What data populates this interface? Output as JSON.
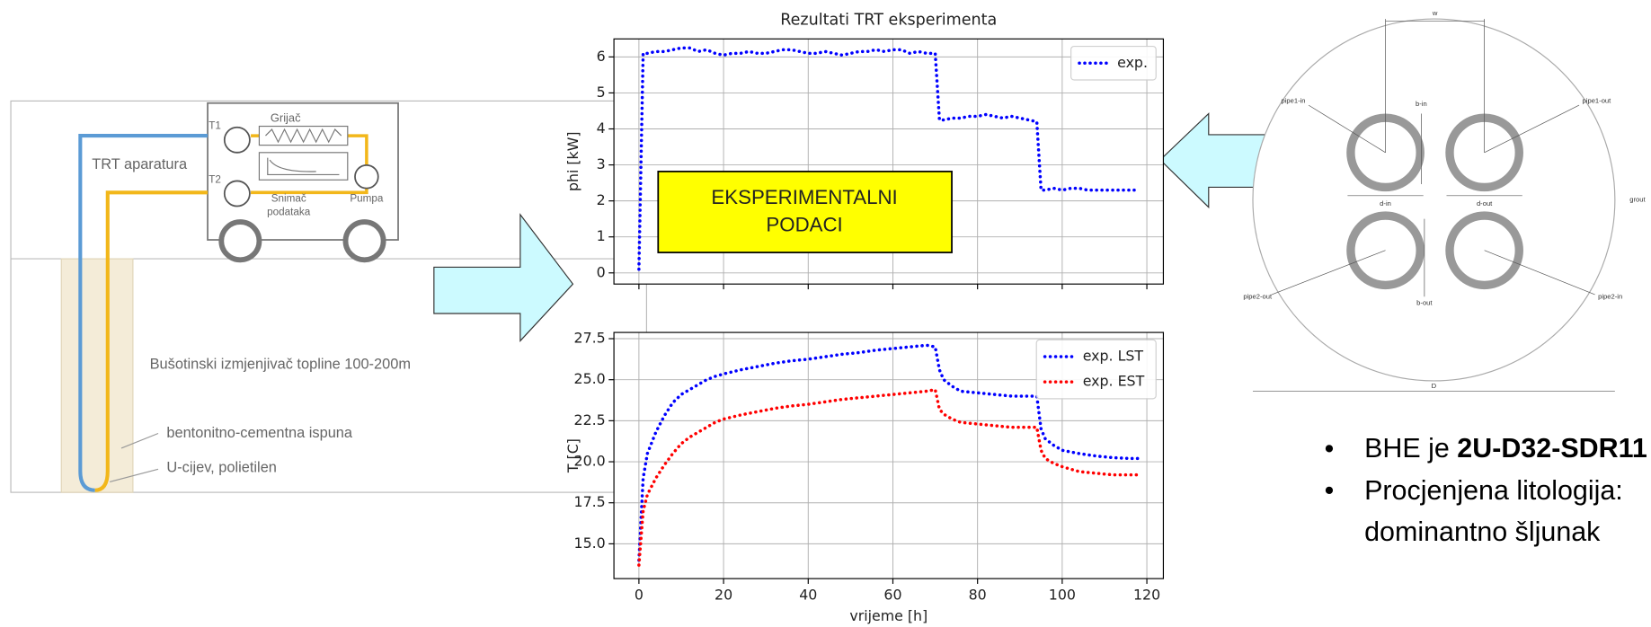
{
  "chart_data": [
    {
      "type": "line",
      "title": "Rezultati TRT eksperimenta",
      "ylabel": "phi [kW]",
      "x": [
        0,
        1,
        2,
        4,
        6,
        8,
        10,
        12,
        14,
        16,
        18,
        20,
        22,
        24,
        26,
        28,
        30,
        32,
        34,
        36,
        38,
        40,
        42,
        44,
        46,
        48,
        50,
        52,
        54,
        56,
        58,
        60,
        62,
        64,
        66,
        68,
        70,
        71,
        72,
        74,
        76,
        78,
        80,
        82,
        84,
        86,
        88,
        90,
        92,
        94,
        95,
        96,
        98,
        100,
        102,
        104,
        106,
        108,
        110,
        112,
        114,
        116,
        118
      ],
      "xlim": [
        -5.9,
        123.9
      ],
      "xticks": [
        0,
        20,
        40,
        60,
        80,
        100,
        120
      ],
      "ylim": [
        -0.31,
        6.5
      ],
      "yticks": [
        0,
        1,
        2,
        3,
        4,
        5,
        6
      ],
      "grid": true,
      "legend": "upper right",
      "line_style": "dotted",
      "series": [
        {
          "name": "exp.",
          "color": "#0000ff",
          "values": [
            0.1,
            6.1,
            6.1,
            6.15,
            6.15,
            6.2,
            6.25,
            6.25,
            6.15,
            6.2,
            6.1,
            6.05,
            6.1,
            6.1,
            6.15,
            6.1,
            6.1,
            6.15,
            6.2,
            6.2,
            6.15,
            6.1,
            6.1,
            6.15,
            6.1,
            6.05,
            6.1,
            6.15,
            6.15,
            6.2,
            6.15,
            6.2,
            6.2,
            6.1,
            6.15,
            6.1,
            6.1,
            4.25,
            4.25,
            4.3,
            4.3,
            4.35,
            4.35,
            4.4,
            4.35,
            4.3,
            4.35,
            4.3,
            4.25,
            4.2,
            2.3,
            2.3,
            2.35,
            2.3,
            2.35,
            2.35,
            2.3,
            2.3,
            2.3,
            2.3,
            2.3,
            2.3,
            2.3
          ]
        }
      ]
    },
    {
      "type": "line",
      "xlabel": "vrijeme [h]",
      "ylabel": "T [C]",
      "x": [
        0,
        1,
        2,
        4,
        6,
        8,
        10,
        12,
        14,
        16,
        18,
        20,
        24,
        28,
        32,
        36,
        40,
        44,
        48,
        52,
        56,
        60,
        64,
        68,
        70,
        71,
        72,
        74,
        76,
        80,
        84,
        88,
        92,
        94,
        95,
        96,
        98,
        100,
        104,
        108,
        112,
        116,
        118
      ],
      "xlim": [
        -5.9,
        123.9
      ],
      "xticks": [
        0,
        20,
        40,
        60,
        80,
        100,
        120
      ],
      "ylim": [
        12.88,
        27.88
      ],
      "yticks": [
        {
          "value": 15,
          "label": "15.0"
        },
        17.5,
        {
          "value": 20,
          "label": "20.0"
        },
        22.5,
        {
          "value": 25,
          "label": "25.0"
        },
        27.5
      ],
      "grid": true,
      "legend": "upper right",
      "line_style": "dotted",
      "series": [
        {
          "name": "exp. LST",
          "color": "#0000ff",
          "values": [
            14,
            19,
            20.5,
            21.8,
            22.8,
            23.6,
            24.1,
            24.4,
            24.7,
            25.0,
            25.2,
            25.35,
            25.6,
            25.8,
            26.0,
            26.15,
            26.25,
            26.4,
            26.55,
            26.65,
            26.8,
            26.9,
            27.0,
            27.1,
            27.0,
            25.6,
            25.0,
            24.6,
            24.3,
            24.2,
            24.1,
            24.0,
            24.0,
            24.0,
            22.0,
            21.4,
            21.0,
            20.7,
            20.5,
            20.35,
            20.25,
            20.2,
            20.2
          ]
        },
        {
          "name": "exp. EST",
          "color": "#ff0000",
          "values": [
            13.7,
            17,
            18,
            19,
            19.8,
            20.5,
            21.1,
            21.5,
            21.8,
            22.1,
            22.4,
            22.6,
            22.85,
            23.05,
            23.25,
            23.4,
            23.5,
            23.65,
            23.8,
            23.9,
            24.0,
            24.1,
            24.2,
            24.3,
            24.4,
            23.2,
            22.9,
            22.6,
            22.4,
            22.3,
            22.2,
            22.1,
            22.1,
            22.1,
            20.7,
            20.2,
            19.9,
            19.7,
            19.4,
            19.3,
            19.2,
            19.2,
            19.2
          ]
        }
      ]
    }
  ],
  "annotation": {
    "lines": [
      "EKSPERIMENTALNI",
      "PODACI"
    ]
  },
  "apparatus": {
    "title": "TRT aparatura",
    "heater": "Grijač",
    "t1": "T1",
    "t2": "T2",
    "logger": [
      "Snimač",
      "podataka"
    ],
    "pump": "Pumpa",
    "borehole": "Bušotinski izmjenjivač topline 100-200m",
    "fill": "bentonitno-cementna ispuna",
    "pipe": "U-cijev, polietilen"
  },
  "cross_section": {
    "w": "w",
    "b_in": "b-in",
    "pipe1_in": "pipe1-in",
    "pipe1_out": "pipe1-out",
    "d_in": "d-in",
    "d_out": "d-out",
    "grout": "grout",
    "pipe2_out": "pipe2-out",
    "pipe2_in": "pipe2-in",
    "b_out": "b-out",
    "D": "D"
  },
  "bullets": [
    {
      "text": "BHE je ",
      "bold": "2U-D32-SDR11"
    },
    {
      "lines": [
        "Procjenjena litologija:",
        "dominantno šljunak"
      ]
    }
  ]
}
